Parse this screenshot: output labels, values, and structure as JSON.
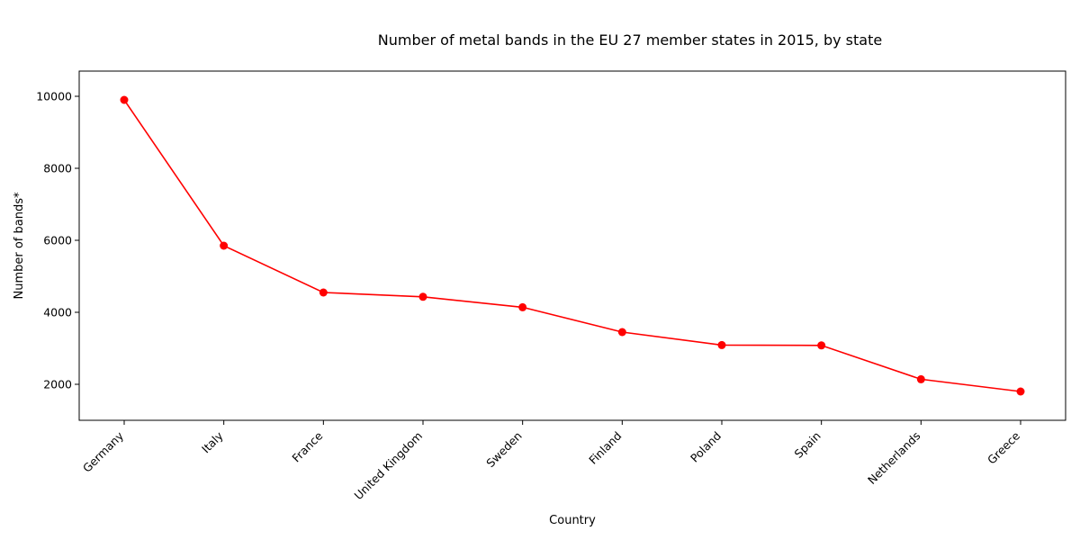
{
  "chart_data": {
    "type": "line",
    "title": "Number of metal bands in the EU 27 member states in 2015, by state",
    "xlabel": "Country",
    "ylabel": "Number of bands*",
    "categories": [
      "Germany",
      "Italy",
      "France",
      "United Kingdom",
      "Sweden",
      "Finland",
      "Poland",
      "Spain",
      "Netherlands",
      "Greece"
    ],
    "series": [
      {
        "values": [
          9900,
          5850,
          4550,
          4430,
          4140,
          3450,
          3090,
          3080,
          2140,
          1800
        ],
        "color": "#ff0000",
        "marker": "circle"
      }
    ],
    "ylim": [
      1000,
      10700
    ],
    "yticks": [
      2000,
      4000,
      6000,
      8000,
      10000
    ],
    "grid": false,
    "legend": "none"
  }
}
